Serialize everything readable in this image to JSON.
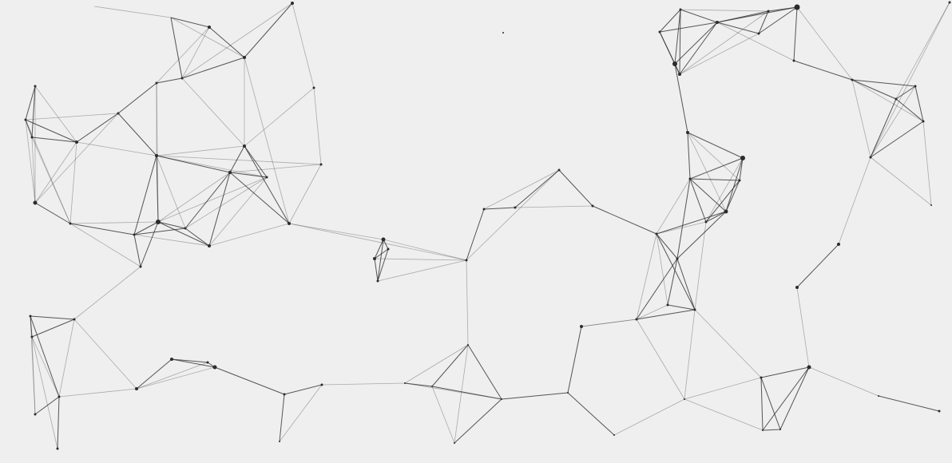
{
  "background_color": "#efefef",
  "line_color": "#3a3a3a",
  "node_color": "#2b2b2b",
  "subject": "network-graph-artwork"
}
